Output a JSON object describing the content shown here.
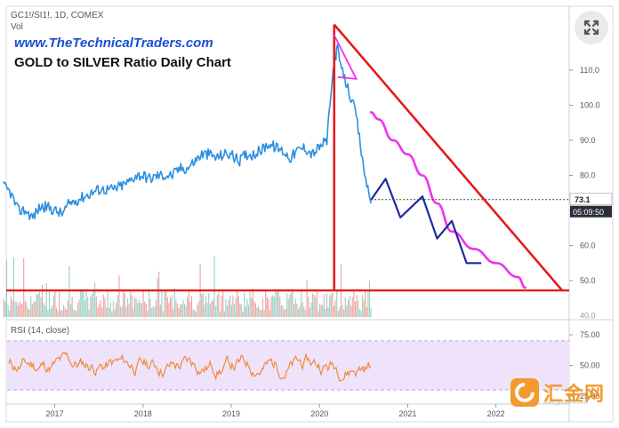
{
  "header": {
    "symbol": "GC1!/SI1!, 1D, COMEX",
    "volume_label": "Vol",
    "website": "www.TheTechnicalTraders.com",
    "title": "GOLD to SILVER Ratio Daily Chart",
    "rsi_label": "RSI (14, close)"
  },
  "price_badge": "73.1",
  "time_badge": "05:09:50",
  "watermark": {
    "text": "汇金网",
    "url": "www.gold678.com",
    "icon": "gold678-logo-icon"
  },
  "expand_icon": "expand-arrows-icon",
  "colors": {
    "ratio_line": "#2f8fe0",
    "projection_magenta": "#ee33ee",
    "projection_navy": "#1e2a9e",
    "triangle": "#e31c1c",
    "rsi_line": "#f08a3c",
    "rsi_band": "#efe3fb",
    "badge_dark": "#2a2e39"
  },
  "chart_data": [
    {
      "type": "line",
      "series": [
        {
          "x": [
            "2016-06",
            "2016-07",
            "2016-08",
            "2016-09",
            "2016-10",
            "2016-11",
            "2016-12",
            "2017-01",
            "2017-02",
            "2017-03",
            "2017-04",
            "2017-05",
            "2017-06",
            "2017-07",
            "2017-08",
            "2017-09",
            "2017-10",
            "2017-11",
            "2017-12",
            "2018-01",
            "2018-02",
            "2018-03",
            "2018-04",
            "2018-05",
            "2018-06",
            "2018-07",
            "2018-08",
            "2018-09",
            "2018-10",
            "2018-11",
            "2018-12",
            "2019-01",
            "2019-02",
            "2019-03",
            "2019-04",
            "2019-05",
            "2019-06",
            "2019-07",
            "2019-08",
            "2019-09",
            "2019-10",
            "2019-11",
            "2019-12",
            "2020-01",
            "2020-02",
            "2020-03",
            "2020-03-15",
            "2020-04",
            "2020-05",
            "2020-06",
            "2020-07",
            "2020-08"
          ],
          "values": [
            77,
            75,
            70,
            70,
            68,
            71,
            71,
            70,
            69,
            72,
            73,
            74,
            75,
            76,
            76,
            76,
            77,
            78,
            80,
            80,
            79,
            80,
            80,
            80,
            82,
            82,
            84,
            86,
            86,
            85,
            86,
            86,
            84,
            86,
            86,
            87,
            89,
            88,
            87,
            85,
            87,
            88,
            86,
            88,
            90,
            113,
            116,
            110,
            104,
            97,
            82,
            72
          ]
        }
      ],
      "ylim": [
        40,
        120
      ],
      "yticks": [
        50.0,
        60.0,
        70.0,
        80.0,
        90.0,
        100.0,
        110.0
      ],
      "xticks": [
        "2017",
        "2018",
        "2019",
        "2020",
        "2021",
        "2022"
      ],
      "annotations": {
        "last_value": 73.1,
        "support_level": 47.2,
        "triangle": {
          "apex": [
            "2020-03",
            123
          ],
          "end": [
            "2022-10",
            47.2
          ]
        },
        "small_wedge": {
          "from": [
            "2020-03",
            120
          ],
          "to": [
            "2020-06",
            107.5
          ]
        },
        "projection_magenta": {
          "x": [
            "2020-08",
            "2020-09",
            "2020-11",
            "2021-01",
            "2021-03",
            "2021-05",
            "2021-07",
            "2021-10",
            "2022-01",
            "2022-04",
            "2022-05"
          ],
          "values": [
            98,
            96,
            90,
            86,
            80,
            72,
            64,
            59,
            55,
            51,
            48
          ]
        },
        "projection_navy": {
          "x": [
            "2020-08",
            "2020-10",
            "2020-12",
            "2021-03",
            "2021-05",
            "2021-07",
            "2021-09",
            "2021-11"
          ],
          "values": [
            73,
            79,
            68,
            74,
            62,
            67,
            55,
            55
          ]
        }
      }
    },
    {
      "type": "bar",
      "series": [
        {
          "name": "Vol"
        }
      ],
      "ylim": [
        0,
        100
      ]
    },
    {
      "type": "line",
      "series": [
        {
          "name": "RSI"
        }
      ],
      "ylim": [
        20,
        85
      ],
      "yticks": [
        25.0,
        50.0,
        75.0
      ],
      "band": [
        30,
        70
      ]
    }
  ]
}
